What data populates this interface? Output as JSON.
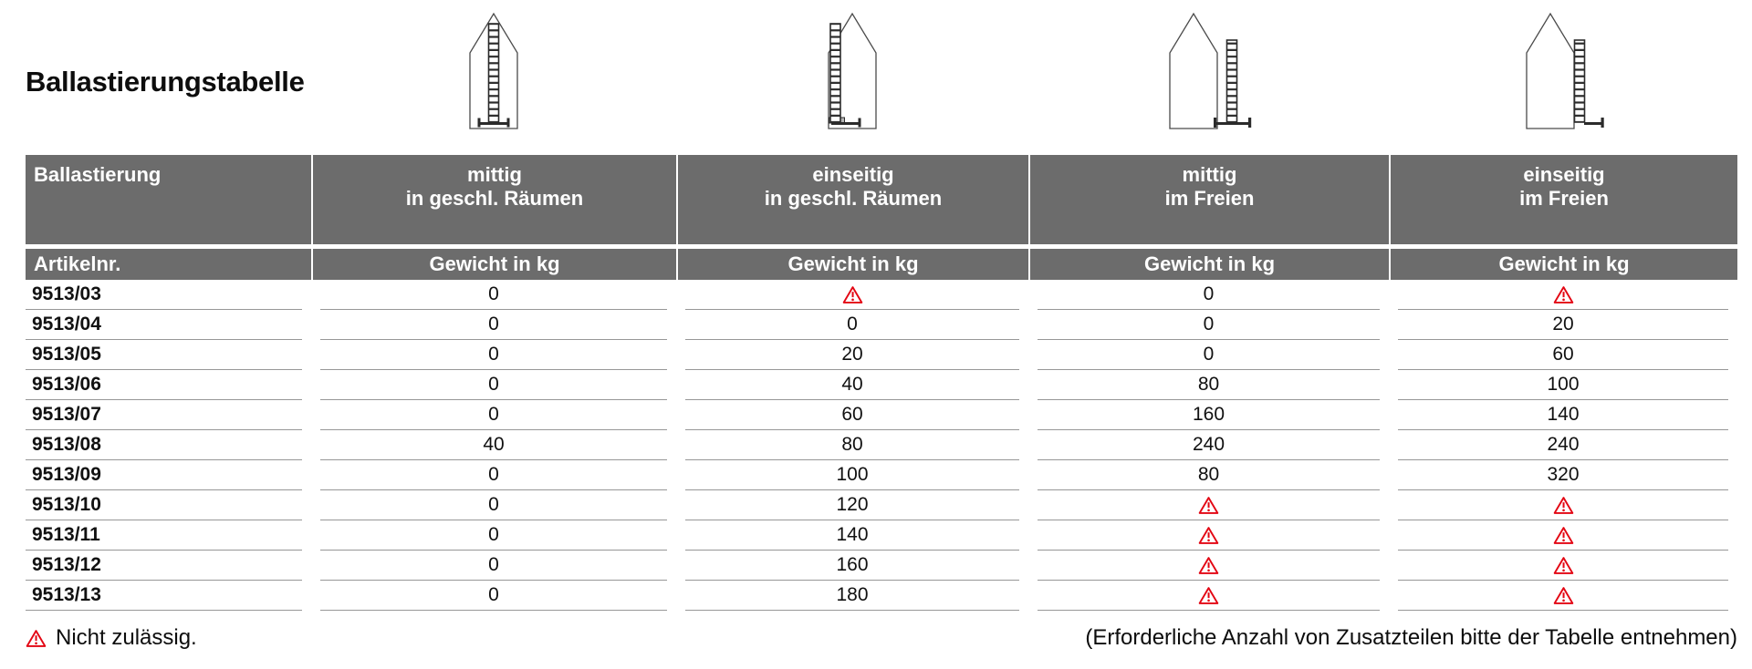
{
  "page": {
    "title": "Ballastierungstabelle",
    "footer_note_left": "Nicht zulässig.",
    "footer_note_right": "(Erforderliche Anzahl von Zusatzteilen bitte der Tabelle entnehmen)"
  },
  "colors": {
    "header_bg": "#6c6c6c",
    "warning_red": "#e30613",
    "rule_gray": "#979797"
  },
  "icons": {
    "warning": "red outlined triangle with exclamation mark",
    "diagrams": [
      "house-ladder-centered-indoors",
      "house-ladder-one-sided-indoors",
      "house-ladder-centered-outdoors",
      "house-ladder-one-sided-outdoors"
    ]
  },
  "table": {
    "corner_label": "Ballastierung",
    "article_header": "Artikelnr.",
    "weight_header": "Gewicht in kg",
    "warning_symbol": "⚠",
    "columns": [
      {
        "line1": "mittig",
        "line2": "in geschl. Räumen"
      },
      {
        "line1": "einseitig",
        "line2": "in geschl. Räumen"
      },
      {
        "line1": "mittig",
        "line2": "im Freien"
      },
      {
        "line1": "einseitig",
        "line2": "im Freien"
      }
    ],
    "rows": [
      {
        "article": "9513/03",
        "values": [
          "0",
          "⚠",
          "0",
          "⚠"
        ]
      },
      {
        "article": "9513/04",
        "values": [
          "0",
          "0",
          "0",
          "20"
        ]
      },
      {
        "article": "9513/05",
        "values": [
          "0",
          "20",
          "0",
          "60"
        ]
      },
      {
        "article": "9513/06",
        "values": [
          "0",
          "40",
          "80",
          "100"
        ]
      },
      {
        "article": "9513/07",
        "values": [
          "0",
          "60",
          "160",
          "140"
        ]
      },
      {
        "article": "9513/08",
        "values": [
          "40",
          "80",
          "240",
          "240"
        ]
      },
      {
        "article": "9513/09",
        "values": [
          "0",
          "100",
          "80",
          "320"
        ]
      },
      {
        "article": "9513/10",
        "values": [
          "0",
          "120",
          "⚠",
          "⚠"
        ]
      },
      {
        "article": "9513/11",
        "values": [
          "0",
          "140",
          "⚠",
          "⚠"
        ]
      },
      {
        "article": "9513/12",
        "values": [
          "0",
          "160",
          "⚠",
          "⚠"
        ]
      },
      {
        "article": "9513/13",
        "values": [
          "0",
          "180",
          "⚠",
          "⚠"
        ]
      }
    ]
  }
}
